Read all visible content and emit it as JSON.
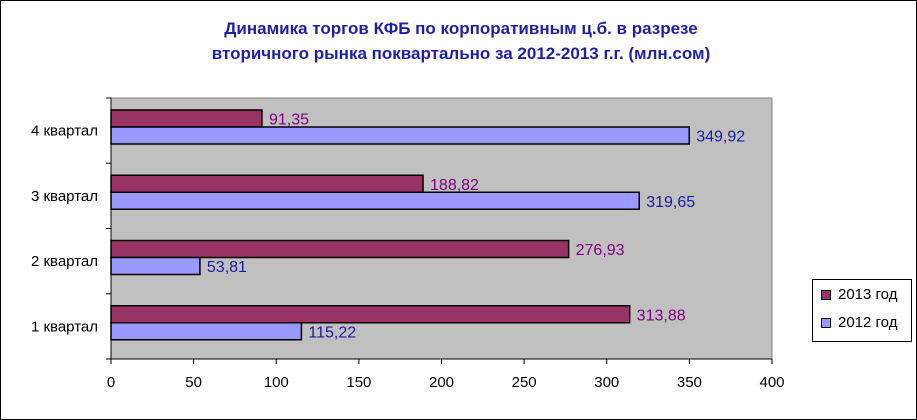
{
  "colors": {
    "series_2013": "#993366",
    "series_2012": "#9999ff",
    "plot_bg": "#c0c0c0",
    "title": "#1f1fa6",
    "label_2013": "#800080",
    "label_2012": "#1a1aa0"
  },
  "chart_data": {
    "type": "bar",
    "orientation": "horizontal",
    "title_lines": [
      "Динамика торгов КФБ по корпоративным ц.б. в разрезе",
      "вторичного рынка поквартально за 2012-2013 г.г. (млн.сом)"
    ],
    "categories": [
      "1 квартал",
      "2 квартал",
      "3 квартал",
      "4 квартал"
    ],
    "series": [
      {
        "name": "2013 год",
        "values": [
          313.88,
          276.93,
          188.82,
          91.35
        ],
        "labels": [
          "313,88",
          "276,93",
          "188,82",
          "91,35"
        ]
      },
      {
        "name": "2012 год",
        "values": [
          115.22,
          53.81,
          319.65,
          349.92
        ],
        "labels": [
          "115,22",
          "53,81",
          "319,65",
          "349,92"
        ]
      }
    ],
    "xlim": [
      0,
      400
    ],
    "xticks": [
      0,
      50,
      100,
      150,
      200,
      250,
      300,
      350,
      400
    ],
    "grid": false,
    "legend_position": "right"
  }
}
